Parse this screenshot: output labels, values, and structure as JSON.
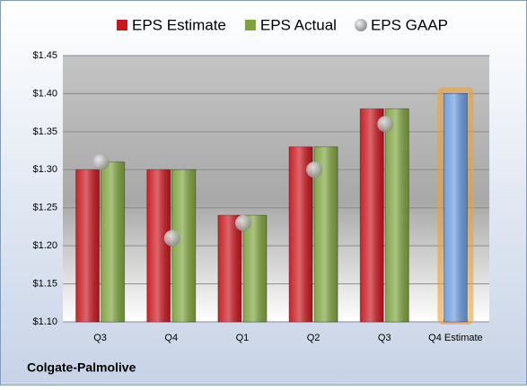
{
  "chart_data": {
    "type": "bar",
    "footer": "Colgate-Palmolive",
    "categories": [
      "Q3",
      "Q4",
      "Q1",
      "Q2",
      "Q3",
      "Q4 Estimate"
    ],
    "series": [
      {
        "name": "EPS Estimate",
        "color": "#c8161c",
        "values": [
          1.3,
          1.3,
          1.24,
          1.33,
          1.38,
          1.4
        ]
      },
      {
        "name": "EPS Actual",
        "color": "#7da33c",
        "values": [
          1.31,
          1.3,
          1.24,
          1.33,
          1.38,
          null
        ]
      },
      {
        "name": "EPS GAAP",
        "color": "#a9a9a9",
        "marker": "circle",
        "values": [
          1.31,
          1.21,
          1.23,
          1.3,
          1.36,
          null
        ]
      }
    ],
    "estimate_color": "#6a9be0",
    "ylim": [
      1.1,
      1.45
    ],
    "yticks": [
      {
        "value": 1.1,
        "label": "$1.10"
      },
      {
        "value": 1.15,
        "label": "$1.15"
      },
      {
        "value": 1.2,
        "label": "$1.20"
      },
      {
        "value": 1.25,
        "label": "$1.25"
      },
      {
        "value": 1.3,
        "label": "$1.30"
      },
      {
        "value": 1.35,
        "label": "$1.35"
      },
      {
        "value": 1.4,
        "label": "$1.40"
      },
      {
        "value": 1.45,
        "label": "$1.45"
      }
    ],
    "grid": true
  }
}
